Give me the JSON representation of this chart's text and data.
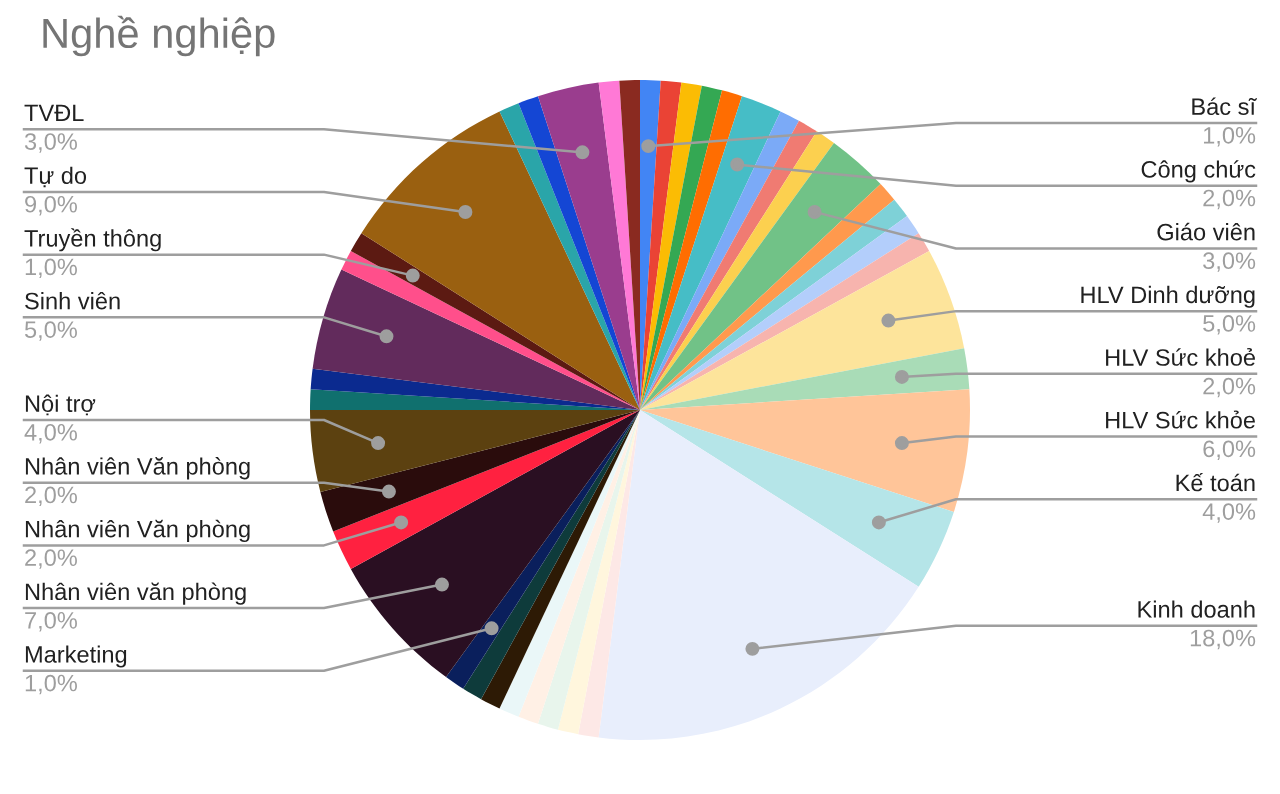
{
  "chart_data": {
    "type": "pie",
    "title": "Nghề nghiệp",
    "categories": [
      "Bác sĩ",
      null,
      null,
      null,
      null,
      "Công chức",
      null,
      null,
      null,
      "Giáo viên",
      null,
      null,
      null,
      null,
      "HLV Dinh dưỡng",
      "HLV Sức khoẻ",
      "HLV Sức khỏe",
      "Kế toán",
      "Kinh doanh",
      null,
      null,
      null,
      null,
      null,
      null,
      null,
      "Marketing",
      "Nhân viên văn phòng",
      "Nhân viên Văn phòng",
      "Nhân viên Văn phòng",
      "Nội trợ",
      null,
      null,
      "Sinh viên",
      null,
      "Truyền thông",
      "Tự do",
      null,
      null,
      "TVĐL",
      null,
      null
    ],
    "values": [
      1,
      1,
      1,
      1,
      1,
      2,
      1,
      1,
      1,
      3,
      1,
      1,
      1,
      1,
      5,
      2,
      6,
      4,
      18,
      1,
      1,
      1,
      1,
      1,
      1,
      1,
      1,
      7,
      2,
      2,
      4,
      1,
      1,
      5,
      1,
      1,
      9,
      1,
      1,
      3,
      1,
      1
    ],
    "value_labels": [
      "1,0%",
      null,
      null,
      null,
      null,
      "2,0%",
      null,
      null,
      null,
      "3,0%",
      null,
      null,
      null,
      null,
      "5,0%",
      "2,0%",
      "6,0%",
      "4,0%",
      "18,0%",
      null,
      null,
      null,
      null,
      null,
      null,
      null,
      "1,0%",
      "7,0%",
      "2,0%",
      "2,0%",
      "4,0%",
      null,
      null,
      "5,0%",
      null,
      "1,0%",
      "9,0%",
      null,
      null,
      "3,0%",
      null,
      null
    ],
    "colors": [
      "#4285f4",
      "#ea4335",
      "#fbbc04",
      "#34a853",
      "#ff6d01",
      "#46bdc6",
      "#7baaf7",
      "#f07b72",
      "#fcd04f",
      "#71c287",
      "#ff994d",
      "#7ed1d7",
      "#b3cefb",
      "#f7b4ae",
      "#fde49b",
      "#a9dcb7",
      "#ffc599",
      "#b5e5e8",
      "#e8eefc",
      "#fde8e6",
      "#fff6dd",
      "#e8f5ec",
      "#fff0e5",
      "#eaf7f8",
      "#2d1a05",
      "#0e3b3b",
      "#0a1f5c",
      "#2a0f22",
      "#ff2140",
      "#2a0c0c",
      "#5c4110",
      "#10706e",
      "#0b2a8f",
      "#622b5c",
      "#ff4f8b",
      "#5c1a12",
      "#9a6010",
      "#2aa5a9",
      "#1446d4",
      "#9a3d8e",
      "#ff79d6",
      "#8a2a20"
    ],
    "legend": false
  }
}
